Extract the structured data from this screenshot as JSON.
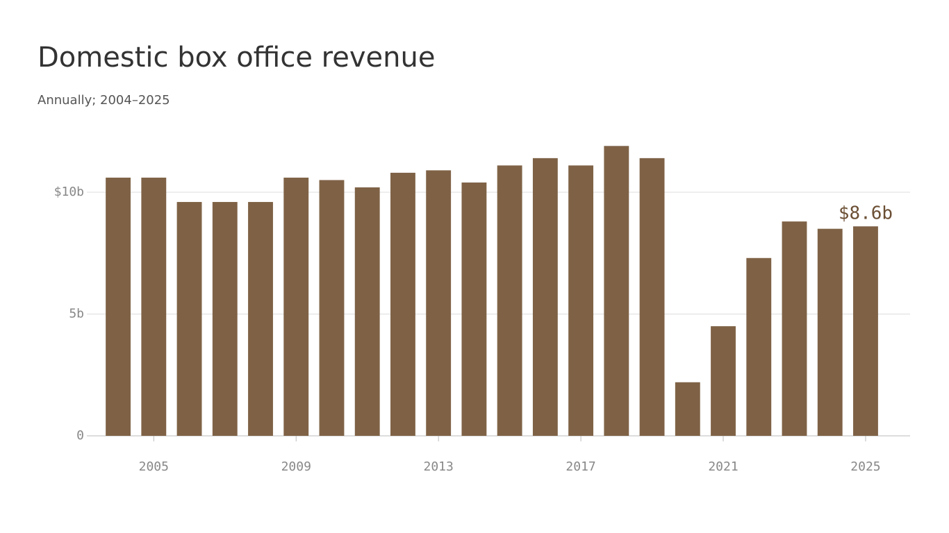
{
  "chart_data": {
    "type": "bar",
    "title": "Domestic box office revenue",
    "subtitle": "Annually; 2004–2025",
    "x": [
      2004,
      2005,
      2006,
      2007,
      2008,
      2009,
      2010,
      2011,
      2012,
      2013,
      2014,
      2015,
      2016,
      2017,
      2018,
      2019,
      2020,
      2021,
      2022,
      2023,
      2024,
      2025
    ],
    "values": [
      10.6,
      10.6,
      9.6,
      9.6,
      9.6,
      10.6,
      10.5,
      10.2,
      10.8,
      10.9,
      10.4,
      11.1,
      11.4,
      11.1,
      11.9,
      11.4,
      2.2,
      4.5,
      7.3,
      8.8,
      8.5,
      8.6
    ],
    "value_labels": [
      null,
      null,
      null,
      null,
      null,
      null,
      null,
      null,
      null,
      null,
      null,
      null,
      null,
      null,
      null,
      null,
      null,
      null,
      null,
      null,
      null,
      "$8.6b"
    ],
    "color": "#7f6246",
    "xlim": [
      2003.12,
      2026.25
    ],
    "xticks": [
      2005,
      2009,
      2013,
      2017,
      2021,
      2025
    ],
    "ylim": [
      0,
      12
    ],
    "yticks": [
      {
        "value": 0,
        "label": "0"
      },
      {
        "value": 5,
        "label": "5b"
      },
      {
        "value": 10,
        "label": "$10b"
      }
    ],
    "grid": true
  }
}
